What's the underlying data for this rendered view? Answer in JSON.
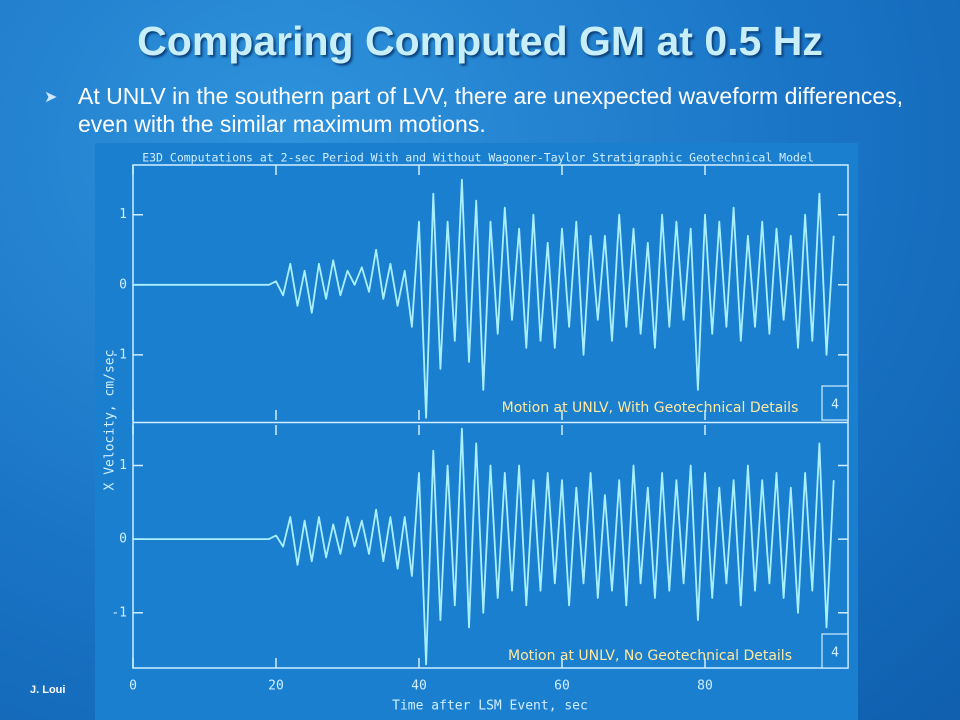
{
  "slide": {
    "title": "Comparing Computed GM at 0.5 Hz",
    "bullet": "At UNLV in the southern part of LVV, there are unexpected waveform differences, even with the similar maximum motions.",
    "footer": "J. Loui"
  },
  "figure": {
    "title": "E3D Computations at 2-sec Period With and Without Wagoner-Taylor Stratigraphic Geotechnical Model",
    "x_label": "Time after LSM Event, sec",
    "y_label": "X Velocity, cm/sec"
  },
  "chart_data": [
    {
      "type": "line",
      "box_label": "4",
      "x": [
        0,
        19,
        20,
        21,
        22,
        23,
        24,
        25,
        26,
        27,
        28,
        29,
        30,
        31,
        32,
        33,
        34,
        35,
        36,
        37,
        38,
        39,
        40,
        41,
        42,
        43,
        44,
        45,
        46,
        47,
        48,
        49,
        50,
        51,
        52,
        53,
        54,
        55,
        56,
        57,
        58,
        59,
        60,
        61,
        62,
        63,
        64,
        65,
        66,
        67,
        68,
        69,
        70,
        71,
        72,
        73,
        74,
        75,
        76,
        77,
        78,
        79,
        80,
        81,
        82,
        83,
        84,
        85,
        86,
        87,
        88,
        89,
        90,
        91,
        92,
        93,
        94,
        95,
        96,
        97,
        98
      ],
      "series": [
        {
          "name": "Motion at UNLV, With Geotechnical Details",
          "color": "#a9f0ff",
          "values": [
            0,
            0,
            0.05,
            -0.15,
            0.3,
            -0.3,
            0.2,
            -0.4,
            0.3,
            -0.2,
            0.35,
            -0.15,
            0.2,
            0,
            0.25,
            -0.1,
            0.5,
            -0.2,
            0.3,
            -0.3,
            0.2,
            -0.6,
            0.9,
            -1.9,
            1.3,
            -1.2,
            0.9,
            -0.8,
            1.5,
            -1.1,
            1.2,
            -1.5,
            0.9,
            -0.7,
            1.1,
            -0.5,
            0.8,
            -0.9,
            1.0,
            -0.8,
            0.6,
            -0.9,
            0.8,
            -0.6,
            0.9,
            -1.0,
            0.7,
            -0.5,
            0.7,
            -0.8,
            1.0,
            -0.6,
            0.8,
            -0.7,
            0.6,
            -0.9,
            1.0,
            -0.6,
            0.9,
            -0.5,
            0.8,
            -1.5,
            1.0,
            -0.7,
            0.9,
            -0.6,
            1.1,
            -0.8,
            0.7,
            -0.6,
            0.9,
            -0.7,
            0.8,
            -0.5,
            0.7,
            -0.9,
            1.0,
            -0.8,
            1.3,
            -1.0,
            0.7
          ]
        }
      ],
      "xlim": [
        0,
        100
      ],
      "xticks": [
        0,
        20,
        40,
        60,
        80
      ],
      "ylim": [
        -1.93,
        1.71
      ],
      "yticks": [
        -1,
        0,
        1
      ]
    },
    {
      "type": "line",
      "box_label": "4",
      "x": [
        0,
        19,
        20,
        21,
        22,
        23,
        24,
        25,
        26,
        27,
        28,
        29,
        30,
        31,
        32,
        33,
        34,
        35,
        36,
        37,
        38,
        39,
        40,
        41,
        42,
        43,
        44,
        45,
        46,
        47,
        48,
        49,
        50,
        51,
        52,
        53,
        54,
        55,
        56,
        57,
        58,
        59,
        60,
        61,
        62,
        63,
        64,
        65,
        66,
        67,
        68,
        69,
        70,
        71,
        72,
        73,
        74,
        75,
        76,
        77,
        78,
        79,
        80,
        81,
        82,
        83,
        84,
        85,
        86,
        87,
        88,
        89,
        90,
        91,
        92,
        93,
        94,
        95,
        96,
        97,
        98
      ],
      "series": [
        {
          "name": "Motion at UNLV, No Geotechnical Details",
          "color": "#a9f0ff",
          "values": [
            0,
            0,
            0.05,
            -0.1,
            0.3,
            -0.35,
            0.25,
            -0.3,
            0.3,
            -0.25,
            0.2,
            -0.2,
            0.3,
            -0.1,
            0.25,
            -0.2,
            0.4,
            -0.3,
            0.3,
            -0.4,
            0.3,
            -0.5,
            0.9,
            -1.7,
            1.2,
            -1.1,
            1.0,
            -0.9,
            1.5,
            -1.2,
            1.3,
            -1.0,
            1.0,
            -0.8,
            0.9,
            -0.7,
            1.0,
            -0.9,
            0.8,
            -0.7,
            0.9,
            -0.6,
            0.8,
            -0.9,
            0.7,
            -0.6,
            0.9,
            -0.8,
            0.6,
            -0.7,
            0.8,
            -0.9,
            1.0,
            -0.6,
            0.7,
            -0.8,
            0.9,
            -0.7,
            0.8,
            -0.6,
            1.0,
            -1.1,
            0.9,
            -0.8,
            0.7,
            -0.6,
            0.8,
            -0.9,
            1.0,
            -0.7,
            0.8,
            -0.6,
            0.9,
            -0.8,
            0.7,
            -1.0,
            0.9,
            -0.7,
            1.3,
            -1.2,
            0.8
          ]
        }
      ],
      "xlim": [
        0,
        100
      ],
      "xticks": [
        0,
        20,
        40,
        60,
        80
      ],
      "ylim": [
        -1.75,
        1.55
      ],
      "yticks": [
        -1,
        0,
        1
      ]
    }
  ]
}
